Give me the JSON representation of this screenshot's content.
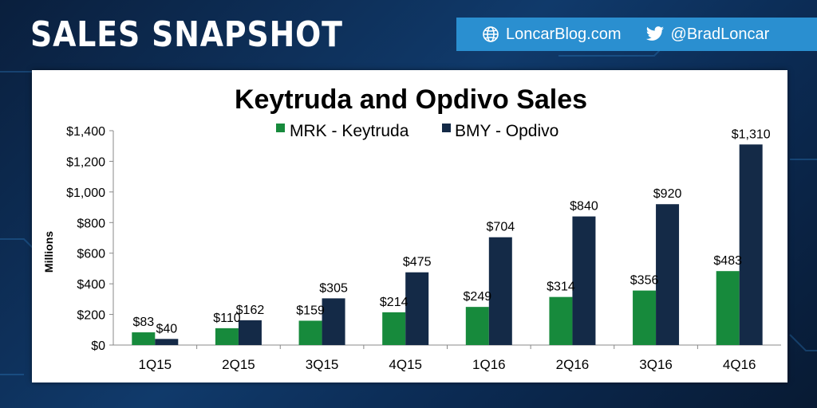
{
  "header": {
    "title": "SALES SNAPSHOT",
    "website": "LoncarBlog.com",
    "twitter": "@BradLoncar",
    "website_icon": "globe-icon",
    "twitter_icon": "twitter-bird-icon",
    "bar_color": "#2a8fd0"
  },
  "chart_data": {
    "type": "bar",
    "title": "Keytruda and Opdivo Sales",
    "xlabel": "",
    "ylabel": "Millions",
    "ylim": [
      0,
      1400
    ],
    "yticks": [
      "$0",
      "$200",
      "$400",
      "$600",
      "$800",
      "$1,000",
      "$1,200",
      "$1,400"
    ],
    "categories": [
      "1Q15",
      "2Q15",
      "3Q15",
      "4Q15",
      "1Q16",
      "2Q16",
      "3Q16",
      "4Q16"
    ],
    "legend_position": "top-center",
    "grid": false,
    "series": [
      {
        "name": "MRK - Keytruda",
        "color": "#178a3c",
        "values": [
          83,
          110,
          159,
          214,
          249,
          314,
          356,
          483
        ],
        "labels": [
          "$83",
          "$110",
          "$159",
          "$214",
          "$249",
          "$314",
          "$356",
          "$483"
        ]
      },
      {
        "name": "BMY - Opdivo",
        "color": "#142a47",
        "values": [
          40,
          162,
          305,
          475,
          704,
          840,
          920,
          1310
        ],
        "labels": [
          "$40",
          "$162",
          "$305",
          "$475",
          "$704",
          "$840",
          "$920",
          "$1,310"
        ]
      }
    ]
  }
}
